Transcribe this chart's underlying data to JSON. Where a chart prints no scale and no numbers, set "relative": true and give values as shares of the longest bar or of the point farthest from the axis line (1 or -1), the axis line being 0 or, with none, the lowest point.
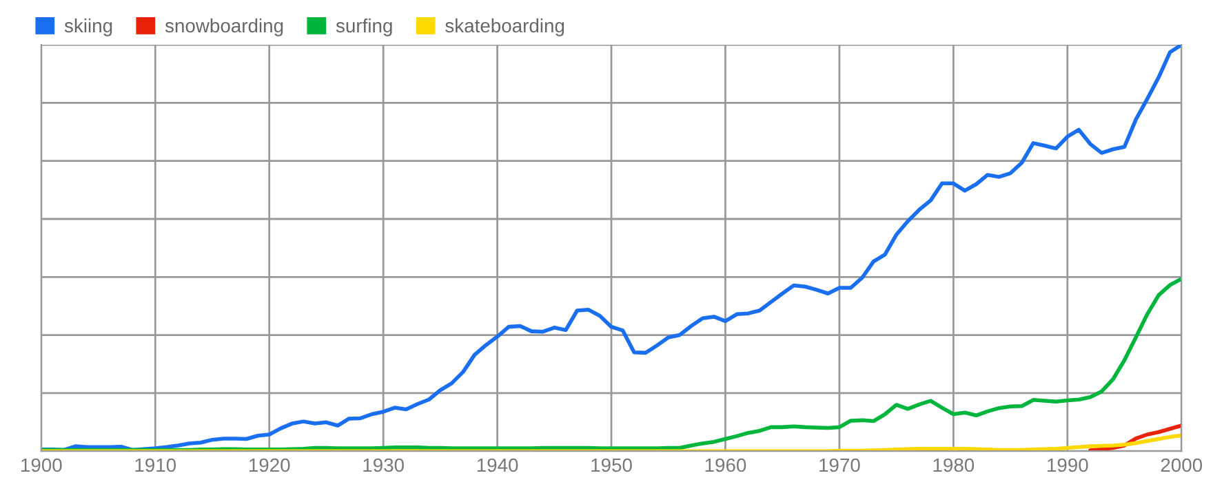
{
  "chart_data": {
    "type": "line",
    "relative": true,
    "xlim": [
      1900,
      2000
    ],
    "xticks": [
      1900,
      1910,
      1920,
      1930,
      1940,
      1950,
      1960,
      1970,
      1980,
      1990,
      2000
    ],
    "grid": true,
    "legend": "top left",
    "tick_labels": "x",
    "x": [
      1900,
      1901,
      1902,
      1903,
      1904,
      1905,
      1906,
      1907,
      1908,
      1909,
      1910,
      1911,
      1912,
      1913,
      1914,
      1915,
      1916,
      1917,
      1918,
      1919,
      1920,
      1921,
      1922,
      1923,
      1924,
      1925,
      1926,
      1927,
      1928,
      1929,
      1930,
      1931,
      1932,
      1933,
      1934,
      1935,
      1936,
      1937,
      1938,
      1939,
      1940,
      1941,
      1942,
      1943,
      1944,
      1945,
      1946,
      1947,
      1948,
      1949,
      1950,
      1951,
      1952,
      1953,
      1954,
      1955,
      1956,
      1957,
      1958,
      1959,
      1960,
      1961,
      1962,
      1963,
      1964,
      1965,
      1966,
      1967,
      1968,
      1969,
      1970,
      1971,
      1972,
      1973,
      1974,
      1975,
      1976,
      1977,
      1978,
      1979,
      1980,
      1981,
      1982,
      1983,
      1984,
      1985,
      1986,
      1987,
      1988,
      1989,
      1990,
      1991,
      1992,
      1993,
      1994,
      1995,
      1996,
      1997,
      1998,
      1999,
      2000
    ],
    "series": [
      {
        "name": "skiing",
        "color": "#1a6ff0",
        "values": [
          0.004,
          0.004,
          0.003,
          0.012,
          0.01,
          0.01,
          0.01,
          0.011,
          0.003,
          0.005,
          0.007,
          0.01,
          0.014,
          0.019,
          0.021,
          0.028,
          0.031,
          0.031,
          0.03,
          0.038,
          0.041,
          0.056,
          0.068,
          0.073,
          0.068,
          0.071,
          0.063,
          0.08,
          0.081,
          0.091,
          0.097,
          0.107,
          0.103,
          0.116,
          0.127,
          0.15,
          0.167,
          0.195,
          0.237,
          0.261,
          0.282,
          0.306,
          0.308,
          0.295,
          0.294,
          0.304,
          0.298,
          0.346,
          0.348,
          0.333,
          0.306,
          0.297,
          0.243,
          0.242,
          0.26,
          0.28,
          0.286,
          0.308,
          0.327,
          0.331,
          0.32,
          0.337,
          0.339,
          0.346,
          0.367,
          0.388,
          0.408,
          0.405,
          0.397,
          0.388,
          0.402,
          0.402,
          0.427,
          0.467,
          0.484,
          0.533,
          0.566,
          0.594,
          0.617,
          0.659,
          0.659,
          0.641,
          0.657,
          0.68,
          0.675,
          0.684,
          0.71,
          0.758,
          0.752,
          0.745,
          0.774,
          0.791,
          0.756,
          0.734,
          0.743,
          0.749,
          0.816,
          0.867,
          0.92,
          0.982,
          1.0
        ]
      },
      {
        "name": "snowboarding",
        "color": "#e8230a",
        "values": [
          null,
          null,
          null,
          null,
          null,
          null,
          null,
          null,
          null,
          null,
          null,
          null,
          null,
          null,
          null,
          null,
          null,
          null,
          null,
          null,
          null,
          null,
          null,
          null,
          null,
          null,
          null,
          null,
          null,
          null,
          null,
          null,
          null,
          null,
          null,
          null,
          null,
          null,
          null,
          null,
          null,
          null,
          null,
          null,
          null,
          null,
          null,
          null,
          null,
          null,
          null,
          null,
          null,
          null,
          null,
          null,
          null,
          null,
          null,
          null,
          null,
          null,
          null,
          null,
          null,
          null,
          null,
          null,
          null,
          null,
          null,
          null,
          null,
          null,
          null,
          null,
          null,
          null,
          null,
          null,
          null,
          null,
          null,
          null,
          null,
          null,
          null,
          null,
          null,
          null,
          null,
          null,
          0.002,
          0.005,
          0.008,
          0.014,
          0.031,
          0.041,
          0.047,
          0.055,
          0.063
        ]
      },
      {
        "name": "surfing",
        "color": "#00b53c",
        "values": [
          0.003,
          0.003,
          0.003,
          0.003,
          0.003,
          0.003,
          0.003,
          0.003,
          0.003,
          0.003,
          0.003,
          0.003,
          0.003,
          0.003,
          0.004,
          0.004,
          0.005,
          0.005,
          0.004,
          0.004,
          0.004,
          0.004,
          0.005,
          0.006,
          0.008,
          0.008,
          0.007,
          0.007,
          0.007,
          0.007,
          0.008,
          0.009,
          0.009,
          0.009,
          0.008,
          0.008,
          0.007,
          0.007,
          0.007,
          0.007,
          0.007,
          0.007,
          0.007,
          0.007,
          0.008,
          0.008,
          0.008,
          0.008,
          0.008,
          0.007,
          0.007,
          0.007,
          0.007,
          0.007,
          0.007,
          0.008,
          0.008,
          0.014,
          0.019,
          0.023,
          0.03,
          0.037,
          0.045,
          0.05,
          0.059,
          0.059,
          0.061,
          0.059,
          0.058,
          0.057,
          0.059,
          0.075,
          0.076,
          0.074,
          0.091,
          0.114,
          0.104,
          0.115,
          0.124,
          0.107,
          0.091,
          0.095,
          0.088,
          0.098,
          0.106,
          0.11,
          0.111,
          0.126,
          0.124,
          0.122,
          0.125,
          0.127,
          0.133,
          0.147,
          0.177,
          0.224,
          0.28,
          0.337,
          0.384,
          0.409,
          0.424
        ]
      },
      {
        "name": "skateboarding",
        "color": "#ffd800",
        "values": [
          0,
          0,
          0,
          0,
          0,
          0,
          0,
          0,
          0,
          0,
          0,
          0,
          0,
          0,
          0,
          0,
          0,
          0,
          0,
          0,
          0,
          0,
          0,
          0,
          0,
          0,
          0,
          0,
          0,
          0,
          0,
          0,
          0,
          0,
          0,
          0,
          0,
          0,
          0,
          0,
          0,
          0,
          0,
          0,
          0,
          0,
          0,
          0,
          0,
          0,
          0,
          0,
          0,
          0,
          0,
          0,
          0,
          0,
          0,
          0,
          0,
          0,
          0,
          0,
          0,
          0,
          0,
          0,
          0,
          0,
          0.001,
          0.001,
          0.001,
          0.002,
          0.003,
          0.004,
          0.005,
          0.006,
          0.006,
          0.006,
          0.006,
          0.006,
          0.005,
          0.004,
          0.003,
          0.003,
          0.003,
          0.004,
          0.005,
          0.006,
          0.008,
          0.01,
          0.012,
          0.013,
          0.014,
          0.016,
          0.02,
          0.025,
          0.03,
          0.035,
          0.039
        ]
      }
    ]
  }
}
